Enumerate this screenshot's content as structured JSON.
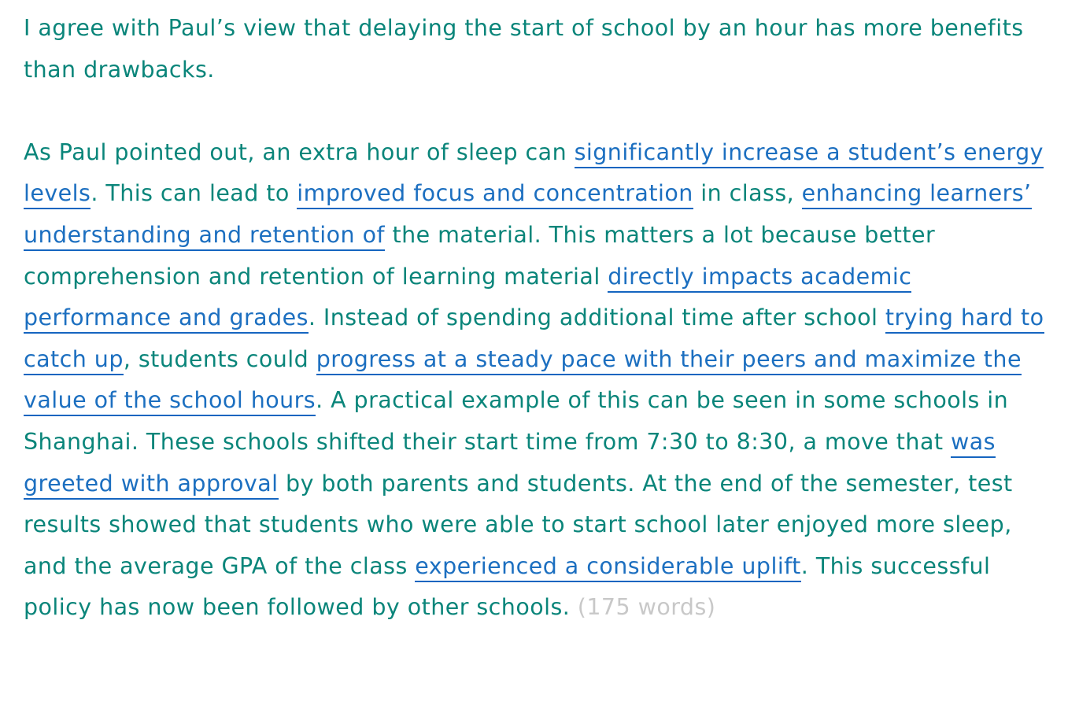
{
  "essay": {
    "paragraphs": [
      {
        "segments": [
          {
            "text": "I agree with Paul’s view that delaying the start of school by an hour has more benefits than drawbacks.",
            "style": "plain"
          }
        ]
      },
      {
        "segments": [
          {
            "text": "As Paul pointed out, an extra hour of sleep can ",
            "style": "plain"
          },
          {
            "text": "significantly increase a student’s energy levels",
            "style": "highlight"
          },
          {
            "text": ". This can lead to ",
            "style": "plain"
          },
          {
            "text": "improved focus and concentration",
            "style": "highlight"
          },
          {
            "text": " in class, ",
            "style": "plain"
          },
          {
            "text": "enhancing learners’ understanding and retention of",
            "style": "highlight"
          },
          {
            "text": " the material. This matters a lot because better comprehension and retention of learning material ",
            "style": "plain"
          },
          {
            "text": "directly impacts academic performance and grades",
            "style": "highlight"
          },
          {
            "text": ". Instead of spending additional time after school ",
            "style": "plain"
          },
          {
            "text": "trying hard to catch up",
            "style": "highlight"
          },
          {
            "text": ", students could ",
            "style": "plain"
          },
          {
            "text": "progress at a steady pace with their peers and maximize the value of the school hours",
            "style": "highlight"
          },
          {
            "text": ". A practical example of this can be seen in some schools in Shanghai. These schools shifted their start time from 7:30 to 8:30, a move that ",
            "style": "plain"
          },
          {
            "text": "was greeted with approval",
            "style": "highlight"
          },
          {
            "text": " by both parents and students. At the end of the semester, test results showed that students who were able to start school later enjoyed more sleep, and the average GPA of the class ",
            "style": "plain"
          },
          {
            "text": "experienced a considerable uplift",
            "style": "highlight"
          },
          {
            "text": ". This successful policy has now been followed by other schools. ",
            "style": "plain"
          },
          {
            "text": "(175 words)",
            "style": "wordcount"
          }
        ]
      }
    ]
  },
  "colors": {
    "body_text": "#0a857a",
    "highlight_text": "#1c6fc0",
    "highlight_underline": "#1565c0",
    "word_count": "#c8c8c8"
  }
}
